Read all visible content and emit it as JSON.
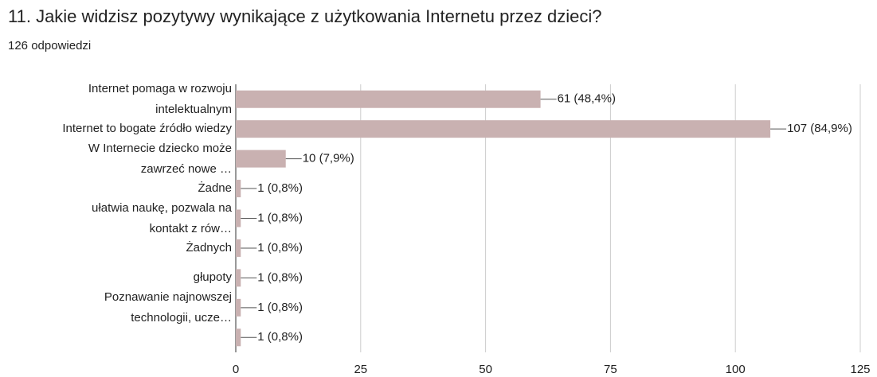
{
  "chart_data": {
    "type": "bar",
    "orientation": "horizontal",
    "title": "11. Jakie widzisz pozytywy wynikające z użytkowania Internetu przez dzieci?",
    "subtitle": "126 odpowiedzi",
    "categories": [
      "Internet pomaga w rozwoju\nintelektualnym",
      "Internet to bogate źródło wiedzy",
      "W Internecie dziecko może\nzawrzeć nowe …",
      "Żadne",
      "ułatwia naukę, pozwala na\nkontakt z rów…",
      "Żadnych",
      "głupoty",
      "Poznawanie najnowszej\ntechnologii, ucze…",
      null
    ],
    "values": [
      61,
      107,
      10,
      1,
      1,
      1,
      1,
      1,
      1
    ],
    "value_labels": [
      "61 (48,4%)",
      "107 (84,9%)",
      "10 (7,9%)",
      "1 (0,8%)",
      "1 (0,8%)",
      "1 (0,8%)",
      "1 (0,8%)",
      "1 (0,8%)",
      "1 (0,8%)"
    ],
    "color": "#c9b1b1",
    "xlim": [
      0,
      125
    ],
    "xticks": [
      0,
      25,
      50,
      75,
      100,
      125
    ],
    "grid": true
  }
}
